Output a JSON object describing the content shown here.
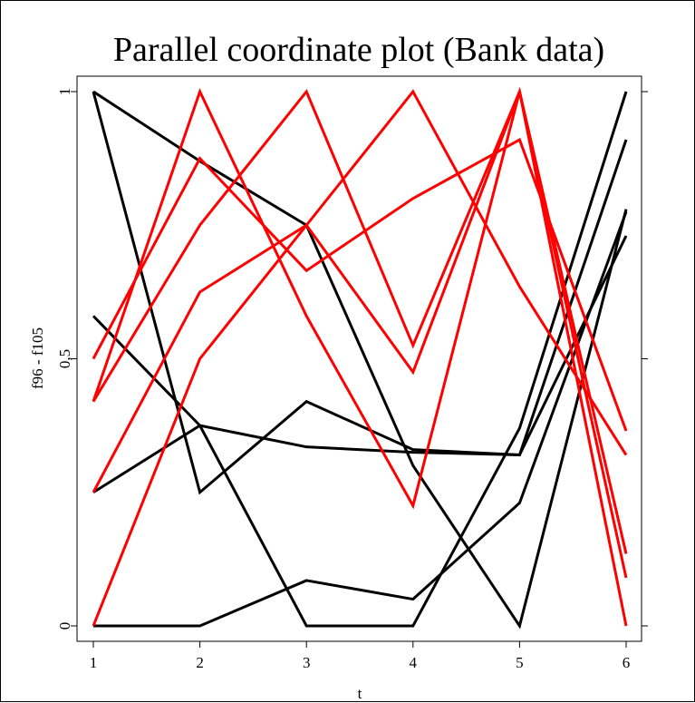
{
  "chart_data": {
    "type": "line",
    "title": "Parallel coordinate plot (Bank data)",
    "xlabel": "t",
    "ylabel": "f96 - f105",
    "xlim": [
      1,
      6
    ],
    "ylim": [
      0,
      1
    ],
    "xticks": [
      "1",
      "2",
      "3",
      "4",
      "5",
      "6"
    ],
    "yticks": [
      "0",
      "0,5",
      "1"
    ],
    "grid": false,
    "colors": {
      "black": "#000000",
      "red": "#ff0000"
    },
    "x": [
      1,
      2,
      3,
      4,
      5,
      6
    ],
    "series": [
      {
        "color": "black",
        "values": [
          1.0,
          0.87,
          0.75,
          0.3,
          0.0,
          0.78
        ]
      },
      {
        "color": "black",
        "values": [
          0.58,
          0.375,
          0.0,
          0.0,
          0.37,
          1.0
        ]
      },
      {
        "color": "black",
        "values": [
          0.25,
          0.375,
          0.335,
          0.325,
          0.32,
          0.73
        ]
      },
      {
        "color": "black",
        "values": [
          0.0,
          0.0,
          0.085,
          0.05,
          0.23,
          0.775
        ]
      },
      {
        "color": "black",
        "values": [
          1.0,
          0.25,
          0.42,
          0.33,
          0.32,
          0.91
        ]
      },
      {
        "color": "red",
        "values": [
          0.5,
          0.875,
          0.665,
          0.8,
          0.91,
          0.365
        ]
      },
      {
        "color": "red",
        "values": [
          0.42,
          1.0,
          0.58,
          0.225,
          1.0,
          0.0
        ]
      },
      {
        "color": "red",
        "values": [
          0.42,
          0.75,
          1.0,
          0.525,
          1.0,
          0.135
        ]
      },
      {
        "color": "red",
        "values": [
          0.25,
          0.625,
          0.75,
          1.0,
          0.635,
          0.32
        ]
      },
      {
        "color": "red",
        "values": [
          0.0,
          0.5,
          0.75,
          0.475,
          1.0,
          0.09
        ]
      }
    ]
  }
}
